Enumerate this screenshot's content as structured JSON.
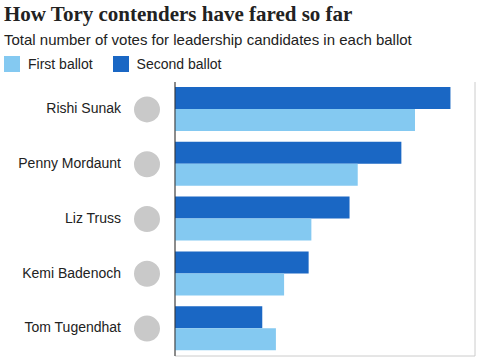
{
  "chart_data": {
    "type": "bar",
    "orientation": "horizontal",
    "title": "How Tory contenders have fared so far",
    "subtitle": "Total number of votes for leadership candidates in each ballot",
    "categories": [
      "Rishi Sunak",
      "Penny Mordaunt",
      "Liz Truss",
      "Kemi Badenoch",
      "Tom Tugendhat"
    ],
    "series": [
      {
        "name": "First ballot",
        "color": "#84c9f1",
        "values": [
          88,
          67,
          50,
          40,
          37
        ]
      },
      {
        "name": "Second ballot",
        "color": "#1a67c4",
        "values": [
          101,
          83,
          64,
          49,
          32
        ]
      }
    ],
    "xlim": [
      0,
      110
    ],
    "xticks": [
      0,
      20,
      40,
      60,
      80,
      100
    ],
    "grid": true,
    "legend": "top left",
    "tick_labels": "y"
  }
}
